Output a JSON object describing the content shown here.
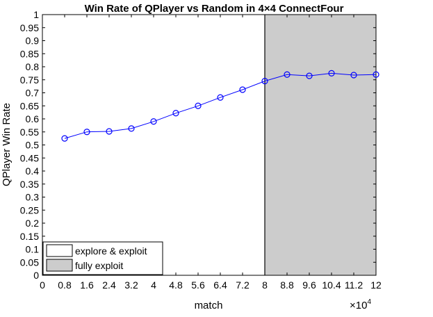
{
  "chart_data": {
    "type": "line",
    "title": "Win Rate of QPlayer vs Random in 4×4 ConnectFour",
    "xlabel": "match",
    "ylabel": "QPlayer Win Rate",
    "x_exponent_label": "×10",
    "x_exponent_power": "4",
    "xlim": [
      0,
      12
    ],
    "ylim": [
      0,
      1
    ],
    "x_ticks": [
      "0",
      "0.8",
      "1.6",
      "2.4",
      "3.2",
      "4",
      "4.8",
      "5.6",
      "6.4",
      "7.2",
      "8",
      "8.8",
      "9.6",
      "10.4",
      "11.2",
      "12"
    ],
    "y_ticks": [
      "0",
      "0.05",
      "0.1",
      "0.15",
      "0.2",
      "0.25",
      "0.3",
      "0.35",
      "0.4",
      "0.45",
      "0.5",
      "0.55",
      "0.6",
      "0.65",
      "0.7",
      "0.75",
      "0.8",
      "0.85",
      "0.9",
      "0.95",
      "1"
    ],
    "series": [
      {
        "x": [
          0.8,
          1.6,
          2.4,
          3.2,
          4.0,
          4.8,
          5.6,
          6.4,
          7.2,
          8.0,
          8.8,
          9.6,
          10.4,
          11.2,
          12.0
        ],
        "values": [
          0.525,
          0.55,
          0.552,
          0.563,
          0.59,
          0.622,
          0.65,
          0.682,
          0.712,
          0.745,
          0.77,
          0.765,
          0.775,
          0.768,
          0.77
        ]
      }
    ],
    "regions": [
      {
        "label": "explore & exploit",
        "x_start": 0,
        "x_end": 8,
        "color": "#ffffff"
      },
      {
        "label": "fully exploit",
        "x_start": 8,
        "x_end": 12,
        "color": "#cccccc"
      }
    ],
    "line_color": "#0000ff",
    "legend_position": "bottom-left",
    "grid": false
  }
}
